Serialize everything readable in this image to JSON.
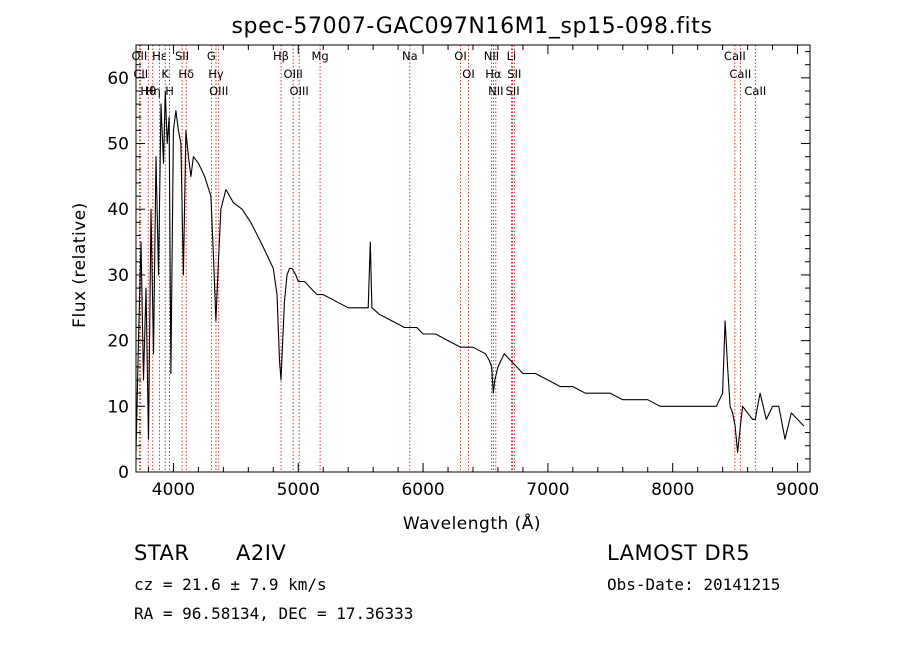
{
  "chart_data": {
    "type": "line",
    "title": "spec-57007-GAC097N16M1_sp15-098.fits",
    "xlabel": "Wavelength (Å)",
    "ylabel": "Flux (relative)",
    "xlim": [
      3700,
      9100
    ],
    "ylim": [
      0,
      65
    ],
    "xticks": [
      4000,
      5000,
      6000,
      7000,
      8000,
      9000
    ],
    "yticks": [
      0,
      10,
      20,
      30,
      40,
      50,
      60
    ],
    "grid": false,
    "series": [
      {
        "x": [
          3700,
          3720,
          3740,
          3760,
          3780,
          3800,
          3820,
          3840,
          3860,
          3880,
          3900,
          3920,
          3935,
          3950,
          3965,
          3980,
          4000,
          4020,
          4040,
          4060,
          4080,
          4100,
          4120,
          4140,
          4160,
          4200,
          4250,
          4300,
          4320,
          4340,
          4360,
          4380,
          4420,
          4480,
          4550,
          4620,
          4700,
          4750,
          4800,
          4830,
          4850,
          4862,
          4875,
          4890,
          4910,
          4930,
          4950,
          4980,
          5000,
          5050,
          5100,
          5150,
          5200,
          5300,
          5400,
          5500,
          5560,
          5577,
          5590,
          5650,
          5750,
          5850,
          5900,
          5950,
          6000,
          6100,
          6200,
          6300,
          6400,
          6500,
          6530,
          6550,
          6563,
          6575,
          6600,
          6650,
          6700,
          6750,
          6800,
          6900,
          7000,
          7100,
          7200,
          7300,
          7400,
          7500,
          7600,
          7700,
          7800,
          7900,
          8000,
          8100,
          8200,
          8300,
          8350,
          8400,
          8420,
          8440,
          8460,
          8480,
          8500,
          8520,
          8542,
          8560,
          8600,
          8640,
          8662,
          8680,
          8700,
          8750,
          8800,
          8850,
          8900,
          8950,
          9000,
          9050
        ],
        "values": [
          3,
          20,
          35,
          14,
          28,
          5,
          40,
          18,
          48,
          30,
          56,
          47,
          58,
          50,
          54,
          15,
          52,
          55,
          52,
          50,
          30,
          52,
          48,
          45,
          48,
          47,
          45,
          42,
          33,
          23,
          32,
          40,
          43,
          41,
          40,
          38,
          35,
          33,
          31,
          27,
          17,
          14,
          20,
          26,
          30,
          31,
          31,
          30,
          29,
          29,
          28,
          27,
          27,
          26,
          25,
          25,
          25,
          35,
          25,
          24,
          23,
          22,
          22,
          22,
          21,
          21,
          20,
          19,
          19,
          18,
          17,
          16,
          12,
          14,
          16,
          18,
          17,
          16,
          15,
          15,
          14,
          13,
          13,
          12,
          12,
          12,
          11,
          11,
          11,
          10,
          10,
          10,
          10,
          10,
          10,
          12,
          23,
          16,
          10,
          9,
          7,
          3,
          7,
          10,
          9,
          8,
          8,
          10,
          12,
          8,
          10,
          10,
          5,
          9,
          8,
          7
        ]
      }
    ],
    "lines": [
      {
        "label": "Hθ",
        "x": 3798
      },
      {
        "label": "OII",
        "x": 3727
      },
      {
        "label": "CII",
        "x": 3738
      },
      {
        "label": "Hη",
        "x": 3835
      },
      {
        "label": "Hε",
        "x": 3889
      },
      {
        "label": "K",
        "x": 3934
      },
      {
        "label": "H",
        "x": 3969
      },
      {
        "label": "Hδ",
        "x": 4102
      },
      {
        "label": "SII",
        "x": 4069
      },
      {
        "label": "G",
        "x": 4304
      },
      {
        "label": "Hγ",
        "x": 4341
      },
      {
        "label": "OIII",
        "x": 4363
      },
      {
        "label": "Hβ",
        "x": 4862
      },
      {
        "label": "OIII",
        "x": 4959
      },
      {
        "label": "OIII",
        "x": 5007
      },
      {
        "label": "Mg",
        "x": 5175
      },
      {
        "label": "Na",
        "x": 5894
      },
      {
        "label": "OI",
        "x": 6300
      },
      {
        "label": "OI",
        "x": 6364
      },
      {
        "label": "NII",
        "x": 6548
      },
      {
        "label": "Hα",
        "x": 6563
      },
      {
        "label": "NII",
        "x": 6583
      },
      {
        "label": "Li",
        "x": 6708
      },
      {
        "label": "SII",
        "x": 6717
      },
      {
        "label": "SII",
        "x": 6731
      },
      {
        "label": "CaII",
        "x": 8498
      },
      {
        "label": "CaII",
        "x": 8542
      },
      {
        "label": "CaII",
        "x": 8662
      }
    ]
  },
  "info": {
    "object_type": "STAR",
    "subclass": "A2IV",
    "survey": "LAMOST DR5",
    "redshift": "cz = 21.6 ± 7.9 km/s",
    "obs_date": "Obs-Date: 20141215",
    "coords": "RA =  96.58134, DEC =  17.36333"
  },
  "colors": {
    "spectrum": "#000000",
    "axes": "#000000",
    "line_markers": "#cc0000"
  }
}
